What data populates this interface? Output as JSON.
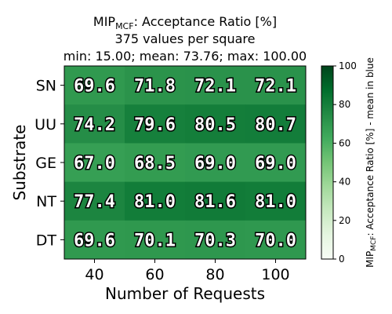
{
  "chart_data": {
    "type": "heatmap",
    "title": {
      "prefix": "MIP",
      "sub": "MCF",
      "suffix": ": Acceptance Ratio [%]"
    },
    "subtitle_lines": [
      "375 values per square",
      "min: 15.00; mean: 73.76; max: 100.00"
    ],
    "xlabel": "Number of Requests",
    "ylabel": "Substrate",
    "x_categories": [
      "40",
      "60",
      "80",
      "100"
    ],
    "y_categories": [
      "SN",
      "UU",
      "GE",
      "NT",
      "DT"
    ],
    "values": [
      [
        69.6,
        71.8,
        72.1,
        72.1
      ],
      [
        74.2,
        79.6,
        80.5,
        80.7
      ],
      [
        67.0,
        68.5,
        69.0,
        69.0
      ],
      [
        77.4,
        81.0,
        81.6,
        81.0
      ],
      [
        69.6,
        70.1,
        70.3,
        70.0
      ]
    ],
    "colorbar": {
      "label_prefix": "MIP",
      "label_sub": "MCF",
      "label_suffix": ": Acceptance Ratio [%] - mean in blue",
      "range": [
        0,
        100
      ],
      "ticks": [
        0,
        20,
        40,
        60,
        80,
        100
      ],
      "colormap": "Greens"
    }
  }
}
